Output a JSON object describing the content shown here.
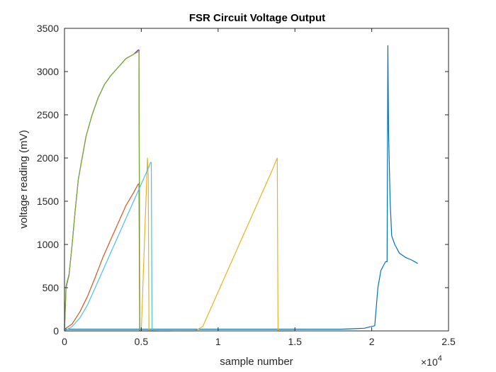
{
  "chart_data": {
    "type": "line",
    "title": "FSR Circuit Voltage Output",
    "xlabel": "sample number",
    "ylabel": "voltage reading (mV)",
    "xlim": [
      0,
      25000
    ],
    "ylim": [
      0,
      3500
    ],
    "x_exponent_label": "×10",
    "x_exponent_power": "4",
    "xticks": [
      0,
      5000,
      10000,
      15000,
      20000,
      25000
    ],
    "xtick_labels": [
      "0",
      "0.5",
      "1",
      "1.5",
      "2",
      "2.5"
    ],
    "yticks": [
      0,
      500,
      1000,
      1500,
      2000,
      2500,
      3000,
      3500
    ],
    "ytick_labels": [
      "0",
      "500",
      "1000",
      "1500",
      "2000",
      "2500",
      "3000",
      "3500"
    ],
    "grid": false,
    "box": true,
    "series": [
      {
        "color": "#0072BD",
        "x": [
          0,
          2000,
          4000,
          6000,
          8000,
          10000,
          12000,
          14000,
          16000,
          18000,
          19500,
          20200,
          20400,
          20600,
          20900,
          21000,
          21050,
          21100,
          21200,
          21300,
          21500,
          21800,
          22200,
          22600,
          23000
        ],
        "y": [
          20,
          20,
          20,
          20,
          20,
          20,
          20,
          20,
          20,
          20,
          30,
          60,
          500,
          700,
          800,
          800,
          3300,
          2300,
          1500,
          1100,
          1000,
          900,
          850,
          820,
          780
        ]
      },
      {
        "color": "#D95319",
        "x": [
          0,
          500,
          1000,
          1500,
          2000,
          2500,
          3000,
          3500,
          4000,
          4500,
          4800,
          4850,
          4900,
          6000
        ],
        "y": [
          20,
          80,
          220,
          400,
          620,
          850,
          1050,
          1250,
          1450,
          1600,
          1700,
          1700,
          0,
          0
        ]
      },
      {
        "color": "#EDB120",
        "x": [
          0,
          5000,
          5400,
          5450,
          5500,
          7000,
          8500,
          9000,
          9500,
          10000,
          10500,
          11000,
          11500,
          12000,
          12500,
          13000,
          13500,
          13800,
          13850,
          13900,
          15000
        ],
        "y": [
          0,
          0,
          2000,
          1800,
          0,
          0,
          0,
          50,
          250,
          450,
          650,
          850,
          1050,
          1250,
          1450,
          1650,
          1850,
          1980,
          2000,
          0,
          0
        ]
      },
      {
        "color": "#7E2F8E",
        "x": [
          0,
          100,
          300,
          500,
          700,
          900,
          1100,
          1400,
          1800,
          2200,
          2600,
          3000,
          3500,
          4000,
          4500,
          4800,
          4850,
          4900
        ],
        "y": [
          0,
          500,
          650,
          1000,
          1400,
          1750,
          1950,
          2250,
          2500,
          2700,
          2850,
          2950,
          3050,
          3150,
          3200,
          3250,
          3250,
          0
        ]
      },
      {
        "color": "#77AC30",
        "x": [
          0,
          100,
          300,
          500,
          700,
          900,
          1100,
          1400,
          1800,
          2200,
          2600,
          3000,
          3500,
          4000,
          4500,
          4800,
          4850,
          4900
        ],
        "y": [
          0,
          520,
          660,
          1000,
          1400,
          1750,
          1950,
          2250,
          2500,
          2700,
          2850,
          2950,
          3050,
          3150,
          3200,
          3230,
          3230,
          0
        ]
      },
      {
        "color": "#4DBEEE",
        "x": [
          0,
          500,
          1000,
          1500,
          2000,
          2500,
          3000,
          3500,
          4000,
          4500,
          5000,
          5500,
          5600,
          5650,
          5700,
          7000
        ],
        "y": [
          0,
          50,
          150,
          300,
          500,
          700,
          900,
          1100,
          1300,
          1500,
          1700,
          1900,
          1950,
          1950,
          0,
          0
        ]
      }
    ]
  }
}
